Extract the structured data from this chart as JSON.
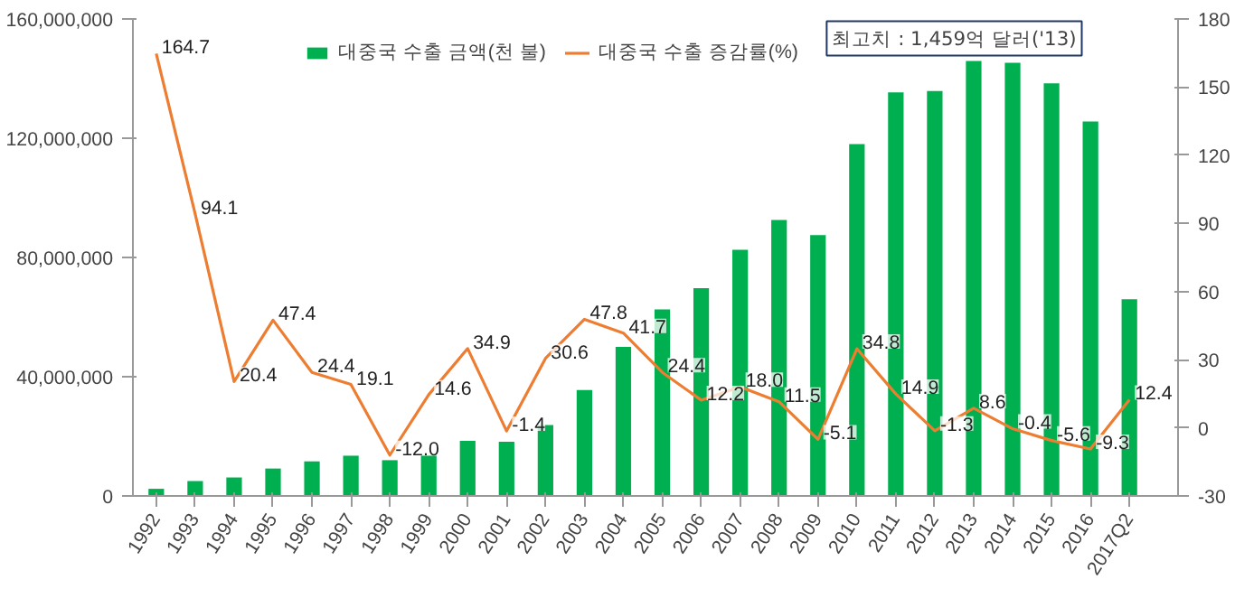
{
  "chart_data": {
    "type": "bar",
    "categories": [
      "1992",
      "1993",
      "1994",
      "1995",
      "1996",
      "1997",
      "1998",
      "1999",
      "2000",
      "2001",
      "2002",
      "2003",
      "2004",
      "2005",
      "2006",
      "2007",
      "2008",
      "2009",
      "2010",
      "2011",
      "2012",
      "2013",
      "2014",
      "2015",
      "2016",
      "2017Q2"
    ],
    "series": [
      {
        "name": "대중국 수출 금액(천 불)",
        "color": "#00b050",
        "values": [
          2400000,
          5000000,
          6200000,
          9200000,
          11600000,
          13500000,
          12000000,
          13500000,
          18500000,
          18200000,
          23800000,
          35500000,
          50000000,
          62600000,
          69700000,
          82600000,
          92600000,
          87500000,
          118000000,
          135400000,
          135800000,
          145900000,
          145300000,
          138400000,
          125600000,
          66000000
        ]
      },
      {
        "name": "대중국 수출 증감률(%)",
        "type": "line",
        "axis": "y2",
        "color": "#ed7d31",
        "values": [
          164.7,
          94.1,
          20.4,
          47.4,
          24.4,
          19.1,
          -12.0,
          14.6,
          34.9,
          -1.4,
          30.6,
          47.8,
          41.7,
          24.4,
          12.2,
          18.0,
          11.5,
          -5.1,
          34.8,
          14.9,
          -1.3,
          8.6,
          -0.4,
          -5.6,
          -9.3,
          12.4
        ],
        "value_labels": [
          "164.7",
          "94.1",
          "20.4",
          "47.4",
          "24.4",
          "19.1",
          "-12.0",
          "14.6",
          "34.9",
          "-1.4",
          "30.6",
          "47.8",
          "41.7",
          "24.4",
          "12.2",
          "18.0",
          "11.5",
          "-5.1",
          "34.8",
          "14.9",
          "-1.3",
          "8.6",
          "-0.4",
          "-5.6",
          "-9.3",
          "12.4"
        ]
      }
    ],
    "ylim": [
      0,
      160000000
    ],
    "yticks": [
      0,
      {
        "value": 40000000,
        "label": "40,000,000"
      },
      {
        "value": 80000000,
        "label": "80,000,000"
      },
      {
        "value": 120000000,
        "label": "120,000,000"
      },
      {
        "value": 160000000,
        "label": "160,000,000"
      }
    ],
    "y2lim": [
      -30,
      180
    ],
    "y2ticks": [
      -30,
      0,
      30,
      60,
      90,
      120,
      150,
      180
    ],
    "annotations": [
      {
        "text": "최고치 : 1,459억 달러('13)",
        "x": "2013",
        "y": 145900000
      }
    ],
    "legend": "top",
    "grid": false
  }
}
